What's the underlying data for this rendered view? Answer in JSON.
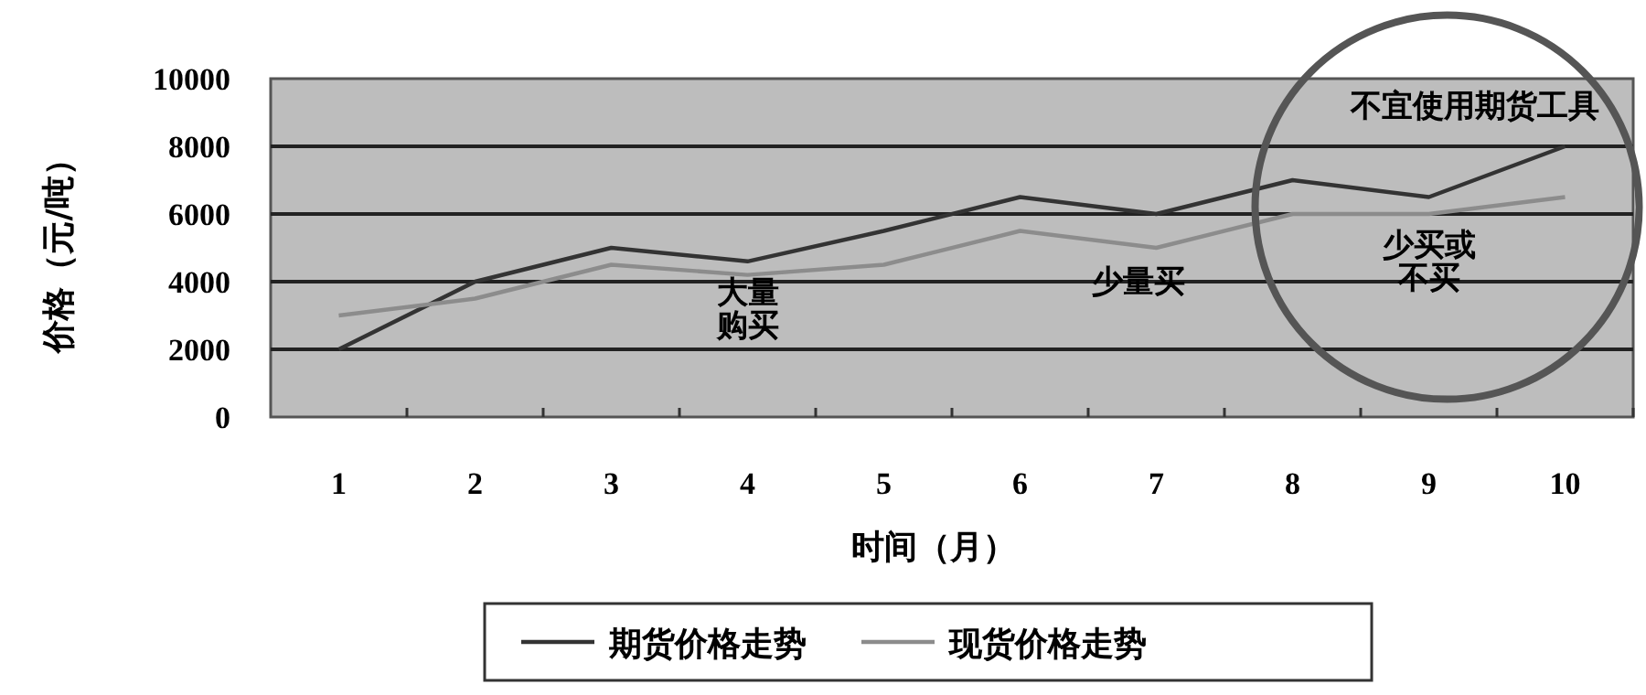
{
  "chart_data": {
    "type": "line",
    "xlabel": "时间（月）",
    "ylabel": "价格（元/吨）",
    "categories": [
      "1",
      "2",
      "3",
      "4",
      "5",
      "6",
      "7",
      "8",
      "9",
      "10"
    ],
    "series": [
      {
        "name": "期货价格走势",
        "color": "#333333",
        "values": [
          2000,
          4000,
          5000,
          4600,
          5500,
          6500,
          6000,
          7000,
          6500,
          8000
        ]
      },
      {
        "name": "现货价格走势",
        "color": "#8c8c8c",
        "values": [
          3000,
          3500,
          4500,
          4200,
          4500,
          5500,
          5000,
          6000,
          6000,
          6500
        ]
      }
    ],
    "ylim": [
      0,
      10000
    ],
    "yticks": [
      0,
      2000,
      4000,
      6000,
      8000,
      10000
    ],
    "grid": "y",
    "legend": "bottom",
    "annotations": [
      "大量购买",
      "少量买",
      "少买或不买",
      "不宜使用期货工具"
    ]
  }
}
